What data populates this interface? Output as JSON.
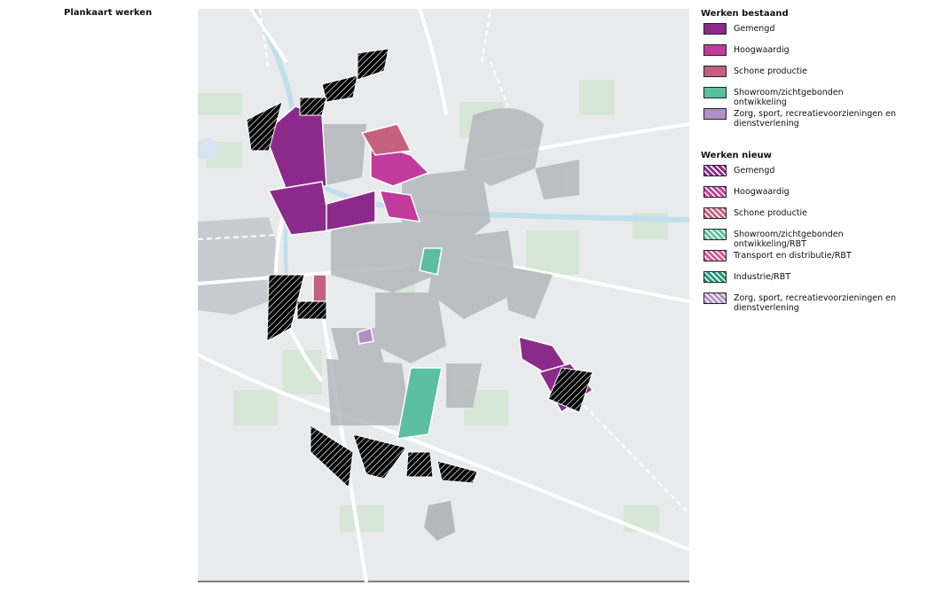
{
  "title": "Plankaart werken",
  "legend": {
    "existing": {
      "title": "Werken bestaand",
      "items": [
        {
          "label": "Gemengd",
          "color": "#8c2a8c"
        },
        {
          "label": "Hoogwaardig",
          "color": "#c23a9c"
        },
        {
          "label": "Schone productie",
          "color": "#c5607f"
        },
        {
          "label": "Showroom/zichtgebonden ontwikkeling",
          "color": "#5cbf9f"
        },
        {
          "label": "Zorg, sport, recreatievoorzieningen en dienstverlening",
          "color": "#b58dc5"
        }
      ]
    },
    "new": {
      "title": "Werken nieuw",
      "items": [
        {
          "label": "Gemengd",
          "color": "#8c2a8c"
        },
        {
          "label": "Hoogwaardig",
          "color": "#c23a9c"
        },
        {
          "label": "Schone productie",
          "color": "#c5607f"
        },
        {
          "label": "Showroom/zichtgebonden ontwikkeling/RBT",
          "color": "#5cbf9f"
        },
        {
          "label": "Transport en distributie/RBT",
          "color": "#d8559b"
        },
        {
          "label": "Industrie/RBT",
          "color": "#1f9a7c"
        },
        {
          "label": "Zorg, sport, recreatievoorzieningen en dienstverlening",
          "color": "#b58dc5"
        }
      ]
    }
  }
}
